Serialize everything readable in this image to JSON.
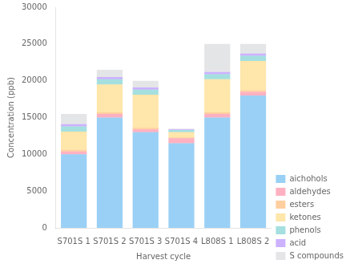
{
  "chart_data": {
    "type": "bar",
    "stacked": true,
    "categories": [
      "S701S 1",
      "S701S 2",
      "S701S 3",
      "S701S 4",
      "L808S 1",
      "L808S 2"
    ],
    "series": [
      {
        "name": "aichohols",
        "values": [
          10000,
          15000,
          13000,
          11500,
          15000,
          18000
        ]
      },
      {
        "name": "aldehydes",
        "values": [
          400,
          500,
          400,
          700,
          500,
          500
        ]
      },
      {
        "name": "esters",
        "values": [
          200,
          200,
          200,
          100,
          200,
          200
        ]
      },
      {
        "name": "ketones",
        "values": [
          2500,
          3800,
          4500,
          700,
          4500,
          4000
        ]
      },
      {
        "name": "phenols",
        "values": [
          700,
          700,
          700,
          300,
          700,
          700
        ]
      },
      {
        "name": "acid",
        "values": [
          300,
          300,
          300,
          100,
          300,
          300
        ]
      },
      {
        "name": "S compounds",
        "values": [
          1400,
          1000,
          900,
          100,
          3800,
          1300
        ]
      }
    ],
    "xlabel": "Harvest cycle",
    "ylabel": "Concentration (ppb)",
    "ylim": [
      0,
      30000
    ],
    "yticks": [
      0,
      5000,
      10000,
      15000,
      20000,
      25000,
      30000
    ],
    "grid": false,
    "legend": "lower right"
  }
}
